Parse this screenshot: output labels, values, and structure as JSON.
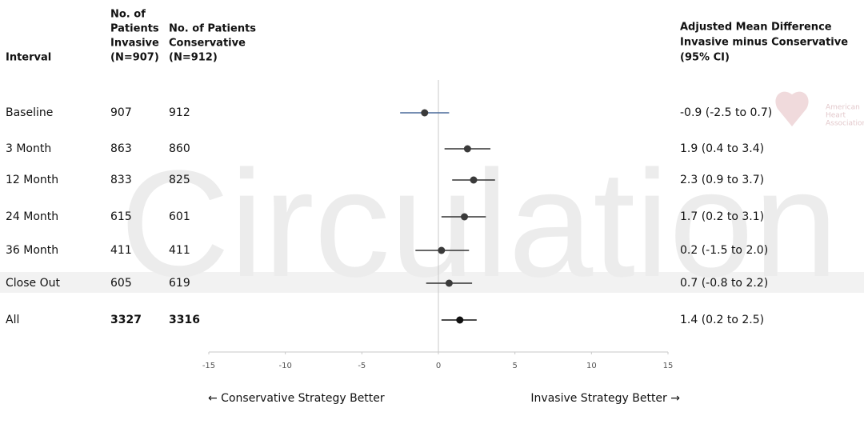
{
  "chart_data": {
    "type": "forest",
    "watermark": "Circulation",
    "logo_text": [
      "American",
      "Heart",
      "Association"
    ],
    "columns": [
      [
        "Interval"
      ],
      [
        "No. of",
        "Patients",
        "Invasive",
        "(N=907)"
      ],
      [
        "No. of Patients",
        "Conservative",
        "(N=912)"
      ],
      [
        "Adjusted Mean Difference",
        "Invasive minus Conservative",
        "(95% CI)"
      ]
    ],
    "categories": [
      "Baseline",
      "3 Month",
      "12 Month",
      "24 Month",
      "36 Month",
      "Close Out",
      "All"
    ],
    "n_invasive": [
      907,
      863,
      833,
      615,
      411,
      605,
      3327
    ],
    "n_conservative": [
      912,
      860,
      825,
      601,
      411,
      619,
      3316
    ],
    "estimates": [
      -0.9,
      1.9,
      2.3,
      1.7,
      0.2,
      0.7,
      1.4
    ],
    "lower": [
      -2.5,
      0.4,
      0.9,
      0.2,
      -1.5,
      -0.8,
      0.2
    ],
    "upper": [
      0.7,
      3.4,
      3.7,
      3.1,
      2.0,
      2.2,
      2.5
    ],
    "value_labels": [
      "-0.9 (-2.5 to 0.7)",
      "1.9 (0.4 to 3.4)",
      "2.3 (0.9 to 3.7)",
      "1.7 (0.2 to 3.1)",
      "0.2 (-1.5 to 2.0)",
      "0.7 (-0.8 to 2.2)",
      "1.4 (0.2 to 2.5)"
    ],
    "ci_colors": [
      "#4a6a9a",
      "#333333",
      "#333333",
      "#333333",
      "#333333",
      "#333333",
      "#111111"
    ],
    "marker_colors": [
      "#3a3a3a",
      "#3a3a3a",
      "#3a3a3a",
      "#3a3a3a",
      "#3a3a3a",
      "#3a3a3a",
      "#111111"
    ],
    "xlim": [
      -15,
      15
    ],
    "xticks": [
      -15,
      -10,
      -5,
      0,
      5,
      10,
      15
    ],
    "left_label": "← Conservative Strategy Better",
    "right_label": "Invasive Strategy Better →"
  }
}
